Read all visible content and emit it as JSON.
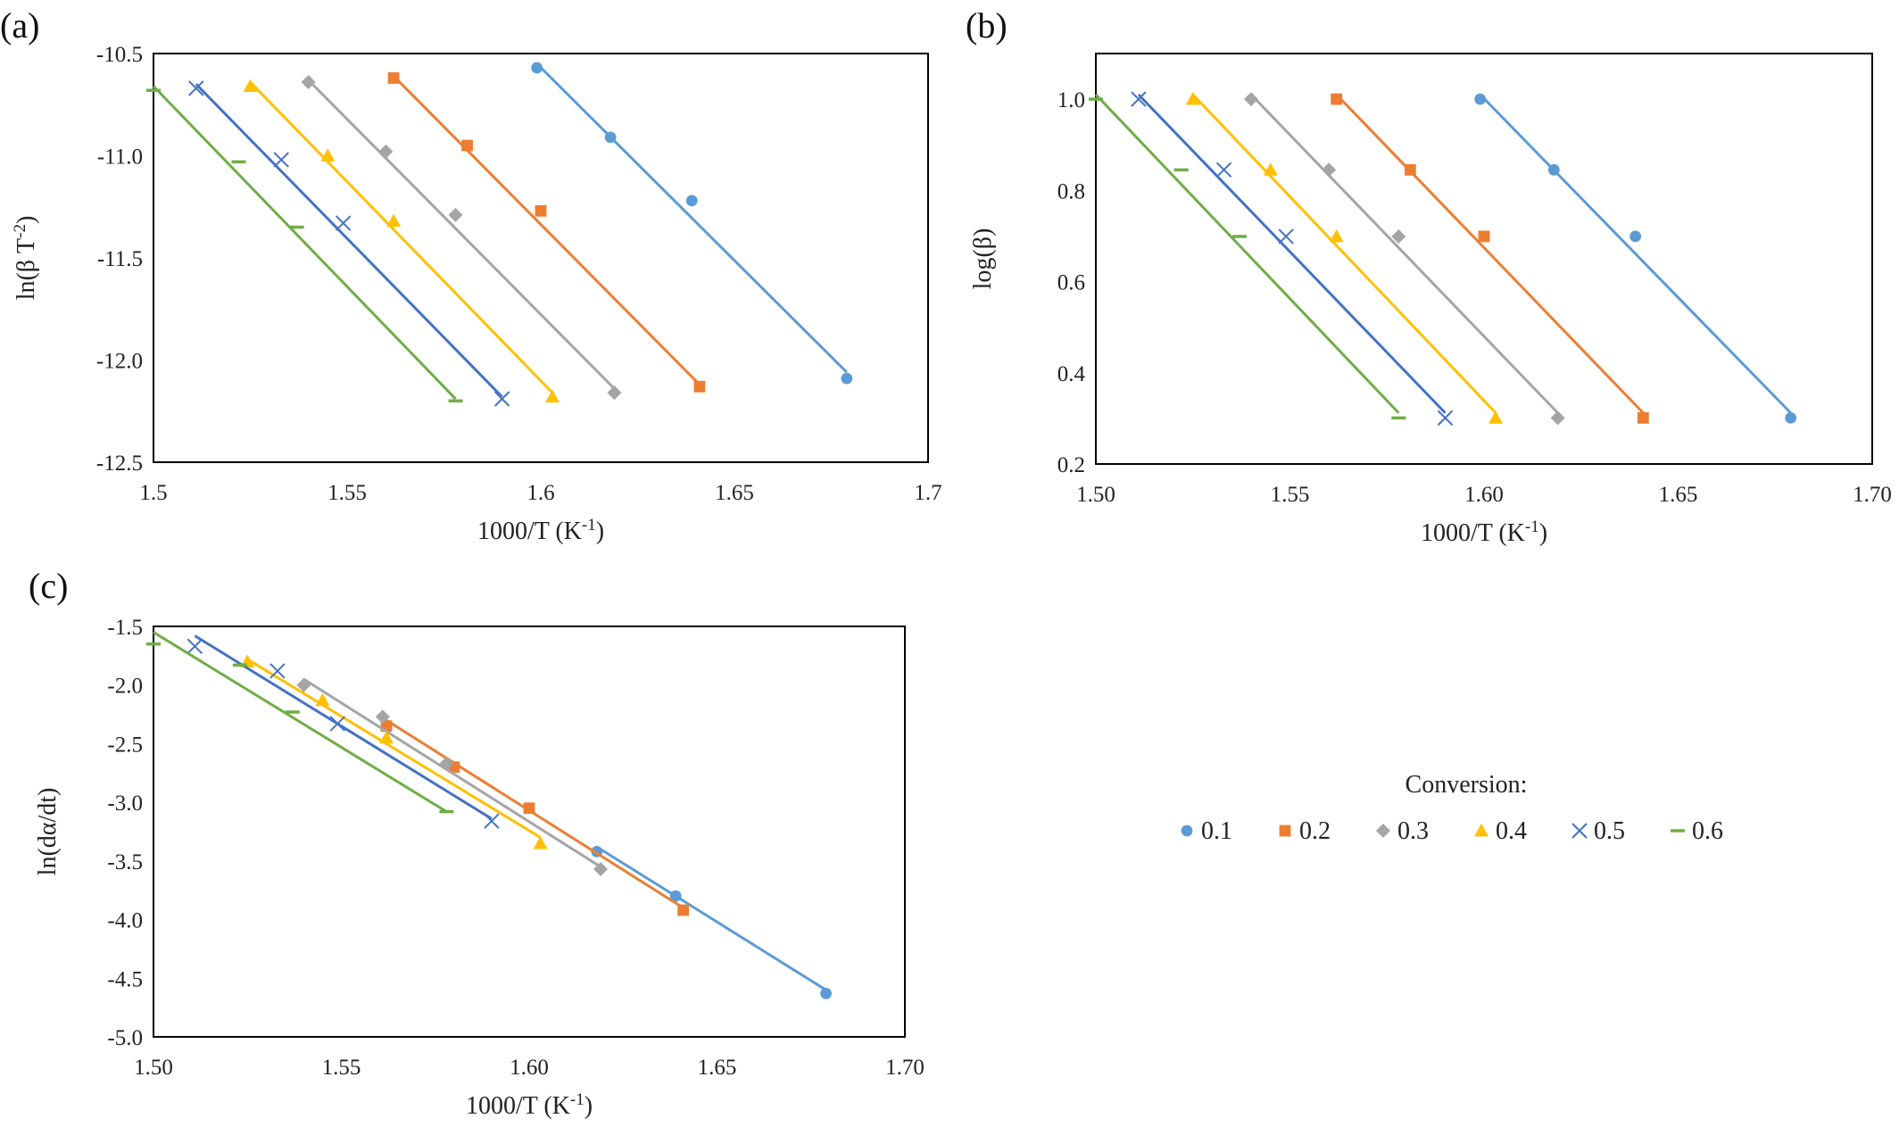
{
  "legend": {
    "title": "Conversion:",
    "placement": "right of panel (c)",
    "entries": [
      {
        "label": "0.1",
        "color": "#5B9BD5",
        "marker": "circle"
      },
      {
        "label": "0.2",
        "color": "#ED7D31",
        "marker": "square"
      },
      {
        "label": "0.3",
        "color": "#A5A5A5",
        "marker": "diamond"
      },
      {
        "label": "0.4",
        "color": "#FFC000",
        "marker": "triangle"
      },
      {
        "label": "0.5",
        "color": "#4472C4",
        "marker": "x"
      },
      {
        "label": "0.6",
        "color": "#70AD47",
        "marker": "dash"
      }
    ]
  },
  "chart_data": [
    {
      "id": "a",
      "panel_label": "(a)",
      "type": "scatter",
      "xlabel_main": "1000/T (K",
      "xlabel_sup": "-1",
      "xlabel_tail": ")",
      "ylabel_main": "ln(β T",
      "ylabel_sup": "-2",
      "ylabel_tail": ")",
      "xlim": [
        1.5,
        1.7
      ],
      "ylim": [
        -12.5,
        -10.5
      ],
      "xticks": [
        1.5,
        1.55,
        1.6,
        1.65,
        1.7
      ],
      "xtick_labels": [
        "1.5",
        "1.55",
        "1.6",
        "1.65",
        "1.7"
      ],
      "yticks": [
        -12.5,
        -12.0,
        -11.5,
        -11.0,
        -10.5
      ],
      "ytick_labels": [
        "-12.5",
        "-12.0",
        "-11.5",
        "-11.0",
        "-10.5"
      ],
      "grid": false,
      "series": [
        {
          "label": "0.1",
          "x": [
            1.599,
            1.618,
            1.639,
            1.679
          ],
          "y": [
            -10.57,
            -10.91,
            -11.22,
            -12.09
          ],
          "fit": [
            [
              1.599,
              -10.55
            ],
            [
              1.679,
              -12.06
            ]
          ]
        },
        {
          "label": "0.2",
          "x": [
            1.562,
            1.581,
            1.6,
            1.641
          ],
          "y": [
            -10.62,
            -10.95,
            -11.27,
            -12.13
          ],
          "fit": [
            [
              1.562,
              -10.61
            ],
            [
              1.641,
              -12.12
            ]
          ]
        },
        {
          "label": "0.3",
          "x": [
            1.54,
            1.56,
            1.578,
            1.619
          ],
          "y": [
            -10.64,
            -10.98,
            -11.29,
            -12.16
          ],
          "fit": [
            [
              1.54,
              -10.63
            ],
            [
              1.619,
              -12.14
            ]
          ]
        },
        {
          "label": "0.4",
          "x": [
            1.525,
            1.545,
            1.562,
            1.603
          ],
          "y": [
            -10.66,
            -11.0,
            -11.32,
            -12.18
          ],
          "fit": [
            [
              1.525,
              -10.64
            ],
            [
              1.603,
              -12.16
            ]
          ]
        },
        {
          "label": "0.5",
          "x": [
            1.511,
            1.533,
            1.549,
            1.59
          ],
          "y": [
            -10.67,
            -11.02,
            -11.33,
            -12.19
          ],
          "fit": [
            [
              1.511,
              -10.65
            ],
            [
              1.59,
              -12.18
            ]
          ]
        },
        {
          "label": "0.6",
          "x": [
            1.5,
            1.522,
            1.537,
            1.578
          ],
          "y": [
            -10.68,
            -11.03,
            -11.35,
            -12.2
          ],
          "fit": [
            [
              1.5,
              -10.66
            ],
            [
              1.578,
              -12.19
            ]
          ]
        }
      ]
    },
    {
      "id": "b",
      "panel_label": "(b)",
      "type": "scatter",
      "xlabel_main": "1000/T (K",
      "xlabel_sup": "-1",
      "xlabel_tail": ")",
      "ylabel_main": "log(β)",
      "ylabel_sup": "",
      "ylabel_tail": "",
      "xlim": [
        1.5,
        1.7
      ],
      "ylim": [
        0.2,
        1.1
      ],
      "xticks": [
        1.5,
        1.55,
        1.6,
        1.65,
        1.7
      ],
      "xtick_labels": [
        "1.50",
        "1.55",
        "1.60",
        "1.65",
        "1.70"
      ],
      "yticks": [
        0.2,
        0.4,
        0.6,
        0.8,
        1.0
      ],
      "ytick_labels": [
        "0.2",
        "0.4",
        "0.6",
        "0.8",
        "1.0"
      ],
      "grid": false,
      "series": [
        {
          "label": "0.1",
          "x": [
            1.599,
            1.618,
            1.639,
            1.679
          ],
          "y": [
            1.0,
            0.845,
            0.699,
            0.301
          ],
          "fit": [
            [
              1.599,
              1.01
            ],
            [
              1.679,
              0.312
            ]
          ]
        },
        {
          "label": "0.2",
          "x": [
            1.562,
            1.581,
            1.6,
            1.641
          ],
          "y": [
            1.0,
            0.845,
            0.699,
            0.301
          ],
          "fit": [
            [
              1.562,
              1.01
            ],
            [
              1.641,
              0.312
            ]
          ]
        },
        {
          "label": "0.3",
          "x": [
            1.54,
            1.56,
            1.578,
            1.619
          ],
          "y": [
            1.0,
            0.845,
            0.699,
            0.301
          ],
          "fit": [
            [
              1.54,
              1.01
            ],
            [
              1.619,
              0.312
            ]
          ]
        },
        {
          "label": "0.4",
          "x": [
            1.525,
            1.545,
            1.562,
            1.603
          ],
          "y": [
            1.0,
            0.845,
            0.699,
            0.301
          ],
          "fit": [
            [
              1.525,
              1.01
            ],
            [
              1.603,
              0.312
            ]
          ]
        },
        {
          "label": "0.5",
          "x": [
            1.511,
            1.533,
            1.549,
            1.59
          ],
          "y": [
            1.0,
            0.845,
            0.699,
            0.301
          ],
          "fit": [
            [
              1.511,
              1.01
            ],
            [
              1.59,
              0.312
            ]
          ]
        },
        {
          "label": "0.6",
          "x": [
            1.5,
            1.522,
            1.537,
            1.578
          ],
          "y": [
            1.0,
            0.845,
            0.699,
            0.301
          ],
          "fit": [
            [
              1.5,
              1.01
            ],
            [
              1.578,
              0.312
            ]
          ]
        }
      ]
    },
    {
      "id": "c",
      "panel_label": "(c)",
      "type": "scatter",
      "xlabel_main": "1000/T (K",
      "xlabel_sup": "-1",
      "xlabel_tail": ")",
      "ylabel_main": "ln(dα/dt)",
      "ylabel_sup": "",
      "ylabel_tail": "",
      "xlim": [
        1.5,
        1.7
      ],
      "ylim": [
        -5.0,
        -1.5
      ],
      "xticks": [
        1.5,
        1.55,
        1.6,
        1.65,
        1.7
      ],
      "xtick_labels": [
        "1.50",
        "1.55",
        "1.60",
        "1.65",
        "1.70"
      ],
      "yticks": [
        -5.0,
        -4.5,
        -4.0,
        -3.5,
        -3.0,
        -2.5,
        -2.0,
        -1.5
      ],
      "ytick_labels": [
        "-5.0",
        "-4.5",
        "-4.0",
        "-3.5",
        "-3.0",
        "-2.5",
        "-2.0",
        "-1.5"
      ],
      "grid": false,
      "series": [
        {
          "label": "0.1",
          "x": [
            1.618,
            1.639,
            1.679
          ],
          "y": [
            -3.42,
            -3.8,
            -4.63
          ],
          "fit": [
            [
              1.618,
              -3.38
            ],
            [
              1.679,
              -4.6
            ]
          ]
        },
        {
          "label": "0.2",
          "x": [
            1.562,
            1.58,
            1.6,
            1.641
          ],
          "y": [
            -2.35,
            -2.7,
            -3.05,
            -3.92
          ],
          "fit": [
            [
              1.562,
              -2.3
            ],
            [
              1.641,
              -3.9
            ]
          ]
        },
        {
          "label": "0.3",
          "x": [
            1.54,
            1.561,
            1.578,
            1.619
          ],
          "y": [
            -2.0,
            -2.27,
            -2.67,
            -3.57
          ],
          "fit": [
            [
              1.54,
              -1.95
            ],
            [
              1.619,
              -3.55
            ]
          ]
        },
        {
          "label": "0.4",
          "x": [
            1.525,
            1.545,
            1.562,
            1.603
          ],
          "y": [
            -1.8,
            -2.13,
            -2.45,
            -3.35
          ],
          "fit": [
            [
              1.525,
              -1.78
            ],
            [
              1.603,
              -3.3
            ]
          ]
        },
        {
          "label": "0.5",
          "x": [
            1.511,
            1.533,
            1.549,
            1.59
          ],
          "y": [
            -1.67,
            -1.88,
            -2.33,
            -3.16
          ],
          "fit": [
            [
              1.511,
              -1.58
            ],
            [
              1.59,
              -3.14
            ]
          ]
        },
        {
          "label": "0.6",
          "x": [
            1.5,
            1.523,
            1.537,
            1.578
          ],
          "y": [
            -1.65,
            -1.83,
            -2.23,
            -3.08
          ],
          "fit": [
            [
              1.5,
              -1.55
            ],
            [
              1.578,
              -3.08
            ]
          ]
        }
      ]
    }
  ]
}
